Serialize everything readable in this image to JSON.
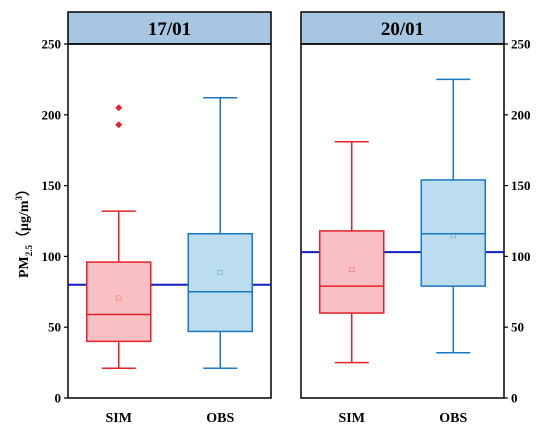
{
  "chart_data": {
    "type": "box",
    "ylabel": {
      "main": "PM",
      "sub": "2.5",
      "rest": "（μg/m",
      "sup": "3",
      "close": "）"
    },
    "ylim": [
      0,
      250
    ],
    "yticks": [
      "0",
      "50",
      "100",
      "150",
      "200",
      "250"
    ],
    "grid": false,
    "series_colors": {
      "SIM": {
        "stroke": "#e8202a",
        "fill": "#f9c0c3"
      },
      "OBS": {
        "stroke": "#1a78c2",
        "fill": "#bcdcf0"
      }
    },
    "strip_fill": "#a7c6e2",
    "reference_line_color": "#0b1fc4",
    "mean_marker": "□",
    "panels": [
      {
        "title": "17/01",
        "reference_line": 80,
        "boxes": [
          {
            "category": "SIM",
            "whisker_low": 21,
            "q1": 40,
            "median": 59,
            "q3": 96,
            "whisker_high": 132,
            "mean": 71,
            "outliers": [
              193,
              205
            ]
          },
          {
            "category": "OBS",
            "whisker_low": 21,
            "q1": 47,
            "median": 75,
            "q3": 116,
            "whisker_high": 212,
            "mean": 89,
            "outliers": []
          }
        ]
      },
      {
        "title": "20/01",
        "reference_line": 103,
        "boxes": [
          {
            "category": "SIM",
            "whisker_low": 25,
            "q1": 60,
            "median": 79,
            "q3": 118,
            "whisker_high": 181,
            "mean": 91,
            "outliers": []
          },
          {
            "category": "OBS",
            "whisker_low": 32,
            "q1": 79,
            "median": 116,
            "q3": 154,
            "whisker_high": 225,
            "mean": 115,
            "outliers": []
          }
        ]
      }
    ]
  }
}
